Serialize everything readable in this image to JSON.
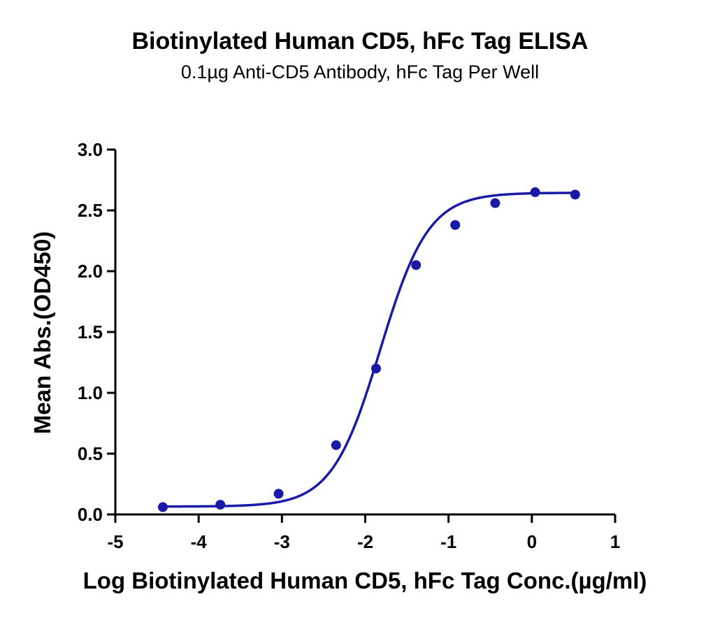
{
  "chart_data": {
    "type": "line",
    "title": "Biotinylated Human CD5, hFc Tag ELISA",
    "subtitle": "0.1µg Anti-CD5 Antibody, hFc Tag Per Well",
    "xlabel": "Log Biotinylated Human CD5, hFc Tag Conc.(µg/ml)",
    "ylabel": "Mean Abs.(OD450)",
    "xlim": [
      -5,
      1
    ],
    "ylim": [
      0,
      3.0
    ],
    "x_ticks": [
      "-5",
      "-4",
      "-3",
      "-2",
      "-1",
      "0",
      "1"
    ],
    "y_ticks": [
      "0.0",
      "0.5",
      "1.0",
      "1.5",
      "2.0",
      "2.5",
      "3.0"
    ],
    "grid": false,
    "color": "#1a1aa6",
    "series": [
      {
        "points": [
          {
            "x": -4.43,
            "y": 0.06
          },
          {
            "x": -3.74,
            "y": 0.08
          },
          {
            "x": -3.04,
            "y": 0.17
          },
          {
            "x": -2.35,
            "y": 0.57
          },
          {
            "x": -1.87,
            "y": 1.2
          },
          {
            "x": -1.39,
            "y": 2.05
          },
          {
            "x": -0.92,
            "y": 2.38
          },
          {
            "x": -0.44,
            "y": 2.56
          },
          {
            "x": 0.04,
            "y": 2.65
          },
          {
            "x": 0.52,
            "y": 2.63
          }
        ],
        "fit": {
          "bottom": 0.065,
          "top": 2.645,
          "log_ec50": -1.82,
          "hill_slope": 1.5
        }
      }
    ]
  }
}
